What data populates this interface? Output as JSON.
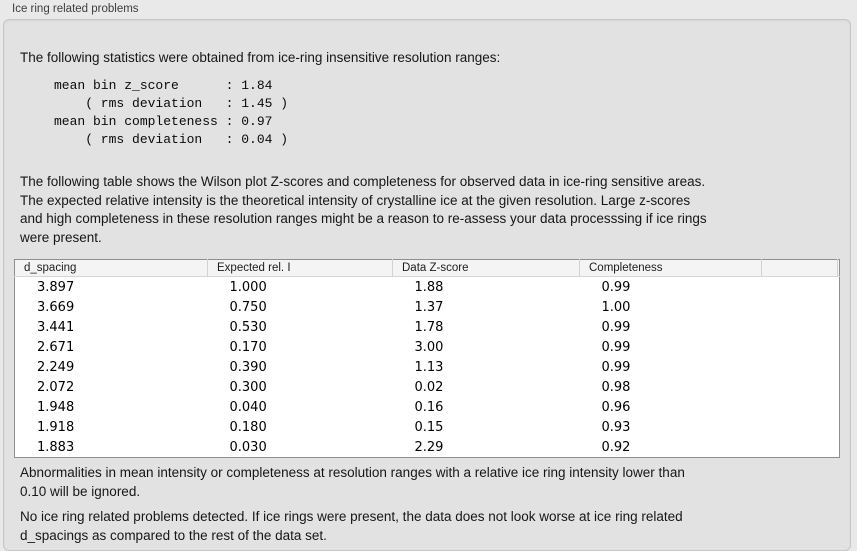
{
  "panel": {
    "title": "Ice ring related problems"
  },
  "stats": {
    "intro": "The following statistics were obtained from ice-ring insensitive resolution ranges:",
    "block": "mean bin z_score      : 1.84\n    ( rms deviation   : 1.45 )\nmean bin completeness : 0.97\n    ( rms deviation   : 0.04 )"
  },
  "table_intro": "The following table shows the Wilson plot Z-scores and completeness for observed data in ice-ring sensitive areas.\nThe expected relative intensity is the theoretical intensity of crystalline ice at the given resolution. Large z-scores\nand high completeness in these resolution ranges might be a reason to re-assess your data processsing if ice rings\nwere present.",
  "table": {
    "columns": [
      "d_spacing",
      "Expected rel. I",
      "Data Z-score",
      "Completeness",
      "",
      ""
    ],
    "rows": [
      [
        "3.897",
        "1.000",
        "1.88",
        "0.99"
      ],
      [
        "3.669",
        "0.750",
        "1.37",
        "1.00"
      ],
      [
        "3.441",
        "0.530",
        "1.78",
        "0.99"
      ],
      [
        "2.671",
        "0.170",
        "3.00",
        "0.99"
      ],
      [
        "2.249",
        "0.390",
        "1.13",
        "0.99"
      ],
      [
        "2.072",
        "0.300",
        "0.02",
        "0.98"
      ],
      [
        "1.948",
        "0.040",
        "0.16",
        "0.96"
      ],
      [
        "1.918",
        "0.180",
        "0.15",
        "0.93"
      ],
      [
        "1.883",
        "0.030",
        "2.29",
        "0.92"
      ]
    ]
  },
  "notes": {
    "ignore_note": "Abnormalities in mean intensity or completeness at resolution ranges with a relative ice ring intensity lower than\n0.10 will be ignored.",
    "conclusion": "No ice ring related problems detected. If ice rings were present, the data does not look worse at ice ring related\nd_spacings as compared to the rest of the data set."
  },
  "colors": {
    "panel_background": "#e2e2e2",
    "table_border": "#8f8f8f",
    "header_background": "#f4f4f4"
  }
}
